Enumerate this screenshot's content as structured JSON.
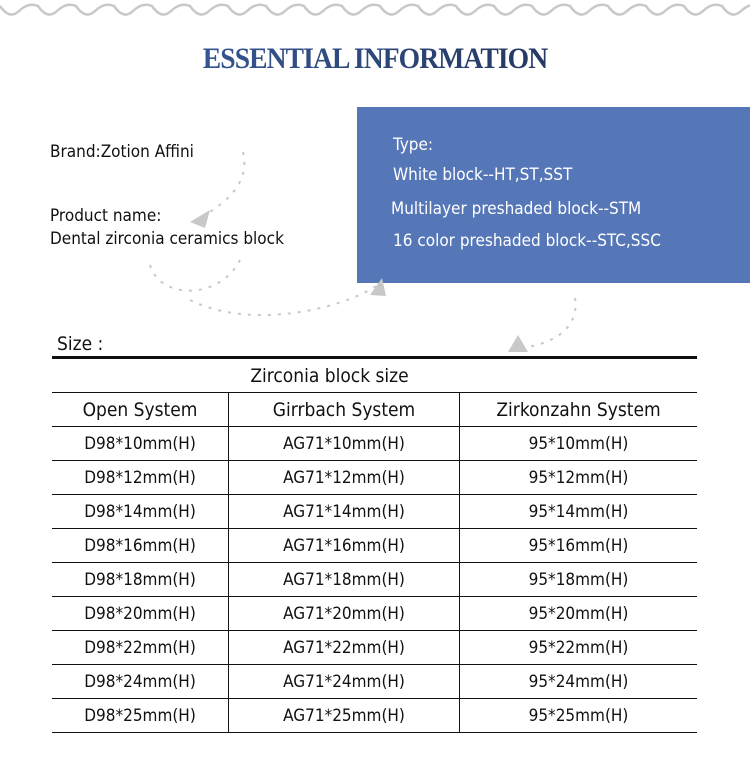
{
  "title": "ESSENTIAL INFORMATION",
  "brand": "Brand:Zotion Affini",
  "product_label": "Product name:",
  "product_name": "Dental zirconia ceramics block",
  "type": {
    "label": "Type:",
    "lines": [
      "White block--HT,ST,SST",
      "Multilayer preshaded block--STM",
      "16 color preshaded block--STC,SSC"
    ]
  },
  "accent_color": "#5577b8",
  "size_label": "Size :",
  "table": {
    "caption": "Zirconia block size",
    "headers": [
      "Open System",
      "Girrbach System",
      "Zirkonzahn System"
    ],
    "rows": [
      [
        "D98*10mm(H)",
        "AG71*10mm(H)",
        "95*10mm(H)"
      ],
      [
        "D98*12mm(H)",
        "AG71*12mm(H)",
        "95*12mm(H)"
      ],
      [
        "D98*14mm(H)",
        "AG71*14mm(H)",
        "95*14mm(H)"
      ],
      [
        "D98*16mm(H)",
        "AG71*16mm(H)",
        "95*16mm(H)"
      ],
      [
        "D98*18mm(H)",
        "AG71*18mm(H)",
        "95*18mm(H)"
      ],
      [
        "D98*20mm(H)",
        "AG71*20mm(H)",
        "95*20mm(H)"
      ],
      [
        "D98*22mm(H)",
        "AG71*22mm(H)",
        "95*22mm(H)"
      ],
      [
        "D98*24mm(H)",
        "AG71*24mm(H)",
        "95*24mm(H)"
      ],
      [
        "D98*25mm(H)",
        "AG71*25mm(H)",
        "95*25mm(H)"
      ]
    ]
  }
}
